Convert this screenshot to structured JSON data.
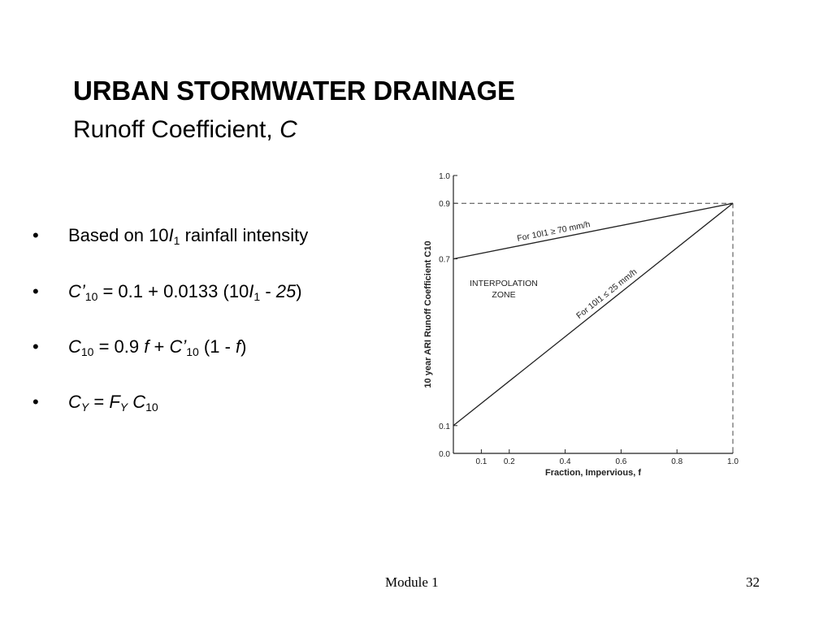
{
  "slide": {
    "title": "URBAN STORMWATER DRAINAGE",
    "subtitle_main": "Runoff Coefficient, ",
    "subtitle_var": "C"
  },
  "bullets": {
    "b1": {
      "pre": "Based on 10",
      "var": "I",
      "sub": "1",
      "post": " rainfall intensity"
    },
    "b2": {
      "v1": "C’",
      "s1": "10",
      "mid": " = 0.1 + 0.0133 (10",
      "v2": "I",
      "s2": "1",
      "minus": " - ",
      "v3": "25",
      "close": ")"
    },
    "b3": {
      "v1": "C",
      "s1": "10",
      "mid1": " = 0.9 ",
      "v2": "f",
      "plus": " + ",
      "v3": "C’",
      "s2": "10",
      "mid2": " (1 - ",
      "v4": "f",
      "close": ")"
    },
    "b4": {
      "v1": "C",
      "s1": "Y",
      "eq": " = ",
      "v2": "F",
      "s2": "Y",
      "sp": " ",
      "v3": "C",
      "s3": "10"
    },
    "bullet_char": "•"
  },
  "chart_data": {
    "type": "line",
    "xlabel": "Fraction, Impervious, f",
    "ylabel": "10 year ARI  Runoff  Coefficient  C10",
    "xlim": [
      0.0,
      1.0
    ],
    "ylim": [
      0.0,
      1.0
    ],
    "x_ticks": [
      0.1,
      0.2,
      0.4,
      0.6,
      0.8,
      1.0
    ],
    "x_tick_labels": [
      "0.1",
      "0.2",
      "0.4",
      "0.6",
      "0.8",
      "1.0"
    ],
    "y_ticks": [
      0.0,
      0.1,
      0.7,
      0.9,
      1.0
    ],
    "y_tick_labels": [
      "0.0",
      "0.1",
      "0.7",
      "0.9",
      "1.0"
    ],
    "series": [
      {
        "name": "For 10I1 ≥ 70 mm/h",
        "x": [
          0.0,
          1.0
        ],
        "y": [
          0.7,
          0.9
        ]
      },
      {
        "name": "For 10I1 ≤ 25 mm/h",
        "x": [
          0.0,
          1.0
        ],
        "y": [
          0.1,
          0.9
        ]
      }
    ],
    "annotations": [
      "INTERPOLATION",
      "ZONE"
    ],
    "dashed_refs": [
      {
        "y": 0.9
      },
      {
        "x": 1.0
      }
    ],
    "grid": false
  },
  "footer": {
    "center": "Module 1",
    "page": "32"
  }
}
